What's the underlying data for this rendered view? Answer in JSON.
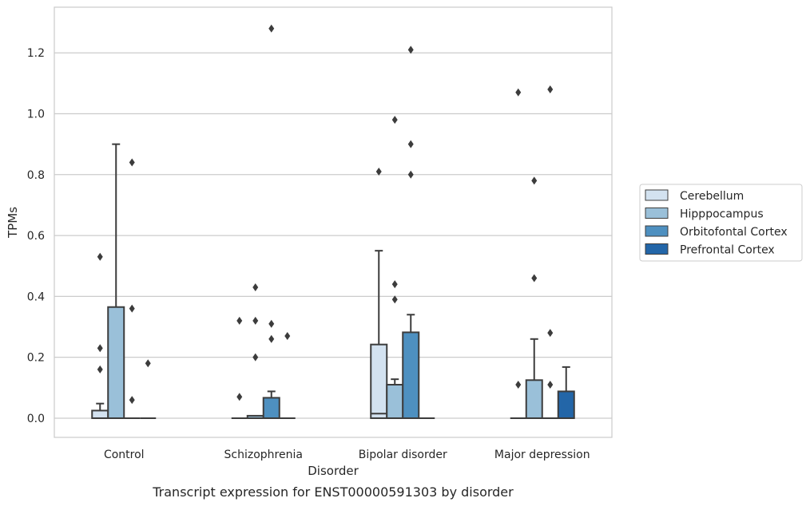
{
  "caption": "Transcript expression for ENST00000591303 by disorder",
  "chart_data": {
    "type": "box",
    "title": "",
    "xlabel": "Disorder",
    "ylabel": "TPMs",
    "ylim": [
      -0.063,
      1.35
    ],
    "yticks": [
      0.0,
      0.2,
      0.4,
      0.6,
      0.8,
      1.0,
      1.2
    ],
    "ytick_labels": [
      "0.0",
      "0.2",
      "0.4",
      "0.6",
      "0.8",
      "1.0",
      "1.2"
    ],
    "categories": [
      "Control",
      "Schizophrenia",
      "Bipolar disorder",
      "Major depression"
    ],
    "grid": "horizontal",
    "legend_position": "right",
    "series": [
      {
        "name": "Cerebellum",
        "color": "#d3e2f0",
        "boxes": [
          {
            "q1": 0.0,
            "median": 0.0,
            "q3": 0.025,
            "whisker_low": 0.0,
            "whisker_high": 0.048,
            "outliers": [
              0.16,
              0.23,
              0.53
            ]
          },
          {
            "q1": 0.0,
            "median": 0.0,
            "q3": 0.0,
            "whisker_low": 0.0,
            "whisker_high": 0.0,
            "outliers": [
              0.07,
              0.32
            ]
          },
          {
            "q1": 0.0,
            "median": 0.015,
            "q3": 0.242,
            "whisker_low": 0.0,
            "whisker_high": 0.55,
            "outliers": [
              0.81
            ]
          },
          {
            "q1": 0.0,
            "median": 0.0,
            "q3": 0.0,
            "whisker_low": 0.0,
            "whisker_high": 0.0,
            "outliers": [
              0.11,
              1.07
            ]
          }
        ]
      },
      {
        "name": "Hipppocampus",
        "color": "#9ac0d9",
        "boxes": [
          {
            "q1": 0.0,
            "median": 0.0,
            "q3": 0.365,
            "whisker_low": 0.0,
            "whisker_high": 0.9,
            "outliers": []
          },
          {
            "q1": 0.0,
            "median": 0.0,
            "q3": 0.008,
            "whisker_low": 0.0,
            "whisker_high": 0.008,
            "outliers": [
              0.2,
              0.32,
              0.43
            ]
          },
          {
            "q1": 0.0,
            "median": 0.0,
            "q3": 0.11,
            "whisker_low": 0.0,
            "whisker_high": 0.128,
            "outliers": [
              0.39,
              0.44,
              0.98
            ]
          },
          {
            "q1": 0.0,
            "median": 0.0,
            "q3": 0.125,
            "whisker_low": 0.0,
            "whisker_high": 0.26,
            "outliers": [
              0.46,
              0.78
            ]
          }
        ]
      },
      {
        "name": "Orbitofontal Cortex",
        "color": "#4e90c0",
        "boxes": [
          {
            "q1": 0.0,
            "median": 0.0,
            "q3": 0.0,
            "whisker_low": 0.0,
            "whisker_high": 0.0,
            "outliers": [
              0.06,
              0.36,
              0.84
            ]
          },
          {
            "q1": 0.0,
            "median": 0.0,
            "q3": 0.067,
            "whisker_low": 0.0,
            "whisker_high": 0.088,
            "outliers": [
              0.26,
              0.31,
              1.28
            ]
          },
          {
            "q1": 0.0,
            "median": 0.0,
            "q3": 0.282,
            "whisker_low": 0.0,
            "whisker_high": 0.34,
            "outliers": [
              0.8,
              0.9,
              1.21
            ]
          },
          {
            "q1": 0.0,
            "median": 0.0,
            "q3": 0.0,
            "whisker_low": 0.0,
            "whisker_high": 0.0,
            "outliers": [
              0.11,
              0.28,
              1.08
            ]
          }
        ]
      },
      {
        "name": "Prefrontal Cortex",
        "color": "#2366a8",
        "boxes": [
          {
            "q1": 0.0,
            "median": 0.0,
            "q3": 0.0,
            "whisker_low": 0.0,
            "whisker_high": 0.0,
            "outliers": [
              0.18
            ]
          },
          {
            "q1": 0.0,
            "median": 0.0,
            "q3": 0.0,
            "whisker_low": 0.0,
            "whisker_high": 0.0,
            "outliers": [
              0.27
            ]
          },
          {
            "q1": 0.0,
            "median": 0.0,
            "q3": 0.0,
            "whisker_low": 0.0,
            "whisker_high": 0.0,
            "outliers": []
          },
          {
            "q1": 0.0,
            "median": 0.0,
            "q3": 0.088,
            "whisker_low": 0.0,
            "whisker_high": 0.168,
            "outliers": []
          }
        ]
      }
    ]
  }
}
